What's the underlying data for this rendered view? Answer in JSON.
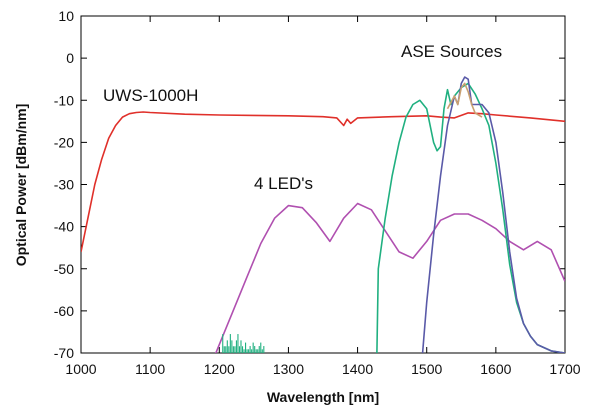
{
  "chart_data": {
    "type": "line",
    "xlabel": "Wavelength [nm]",
    "ylabel": "Optical Power [dBm/nm]",
    "xlim": [
      1000,
      1700
    ],
    "ylim": [
      -70,
      10
    ],
    "xticks": [
      1000,
      1100,
      1200,
      1300,
      1400,
      1500,
      1600,
      1700
    ],
    "yticks": [
      10,
      0,
      -10,
      -20,
      -30,
      -40,
      -50,
      -60,
      -70
    ],
    "grid": false,
    "annotations": [
      {
        "id": "uws",
        "text": "UWS-1000H"
      },
      {
        "id": "leds",
        "text": "4 LED's"
      },
      {
        "id": "ase",
        "text": "ASE Sources"
      }
    ],
    "series": [
      {
        "color": "#e0302a",
        "x": [
          1000,
          1010,
          1020,
          1030,
          1040,
          1050,
          1060,
          1070,
          1080,
          1090,
          1100,
          1150,
          1200,
          1250,
          1300,
          1350,
          1370,
          1380,
          1385,
          1390,
          1400,
          1450,
          1500,
          1520,
          1540,
          1560,
          1580,
          1600,
          1650,
          1700
        ],
        "y": [
          -46,
          -38,
          -30,
          -24,
          -19,
          -16,
          -14,
          -13.2,
          -12.9,
          -12.8,
          -12.9,
          -13.3,
          -13.5,
          -13.6,
          -13.7,
          -13.9,
          -14.2,
          -16,
          -14.5,
          -15.5,
          -14.2,
          -13.9,
          -13.7,
          -14,
          -14.2,
          -13,
          -13.2,
          -13.5,
          -14.2,
          -15
        ]
      },
      {
        "color": "#b050b0",
        "x": [
          1190,
          1200,
          1220,
          1240,
          1260,
          1280,
          1300,
          1320,
          1340,
          1360,
          1380,
          1400,
          1420,
          1440,
          1460,
          1480,
          1500,
          1520,
          1540,
          1560,
          1580,
          1600,
          1620,
          1640,
          1660,
          1680,
          1700
        ],
        "y": [
          -72,
          -68,
          -60,
          -52,
          -44,
          -38,
          -35,
          -35.5,
          -39,
          -43.5,
          -38,
          -34.5,
          -36,
          -41,
          -46,
          -47.5,
          -43.5,
          -38.5,
          -37,
          -37,
          -38.5,
          -40.5,
          -43.5,
          -45.5,
          -43.5,
          -45.5,
          -53
        ]
      },
      {
        "color": "#20b080",
        "x": [
          1428,
          1430,
          1440,
          1450,
          1460,
          1470,
          1480,
          1490,
          1500,
          1510,
          1515,
          1520,
          1525,
          1530,
          1535,
          1540,
          1550,
          1560,
          1570,
          1580,
          1590,
          1600,
          1610,
          1620,
          1630,
          1640,
          1650,
          1660,
          1680,
          1700
        ],
        "y": [
          -70,
          -50,
          -38,
          -28,
          -20,
          -14,
          -11,
          -10,
          -12,
          -20,
          -22,
          -21,
          -12,
          -7.5,
          -11,
          -9,
          -7,
          -6,
          -8.5,
          -12,
          -16,
          -25,
          -36,
          -49,
          -58,
          -63,
          -66,
          -68,
          -69.5,
          -70
        ]
      },
      {
        "color": "#5a5aa8",
        "x": [
          1494,
          1500,
          1510,
          1520,
          1530,
          1540,
          1545,
          1550,
          1555,
          1560,
          1565,
          1570,
          1580,
          1590,
          1600,
          1610,
          1620,
          1630,
          1640,
          1650,
          1660,
          1680,
          1700
        ],
        "y": [
          -70,
          -58,
          -42,
          -28,
          -16,
          -9,
          -11,
          -6,
          -4.5,
          -5,
          -11,
          -11,
          -11,
          -13,
          -20,
          -32,
          -46,
          -57,
          -63,
          -66,
          -68,
          -69.5,
          -70
        ]
      },
      {
        "color": "#c9a070",
        "x": [
          1530,
          1540,
          1545,
          1550,
          1555,
          1560,
          1565,
          1570,
          1580
        ],
        "y": [
          -12,
          -9,
          -11,
          -7,
          -6,
          -8,
          -11,
          -13,
          -14
        ]
      }
    ]
  }
}
